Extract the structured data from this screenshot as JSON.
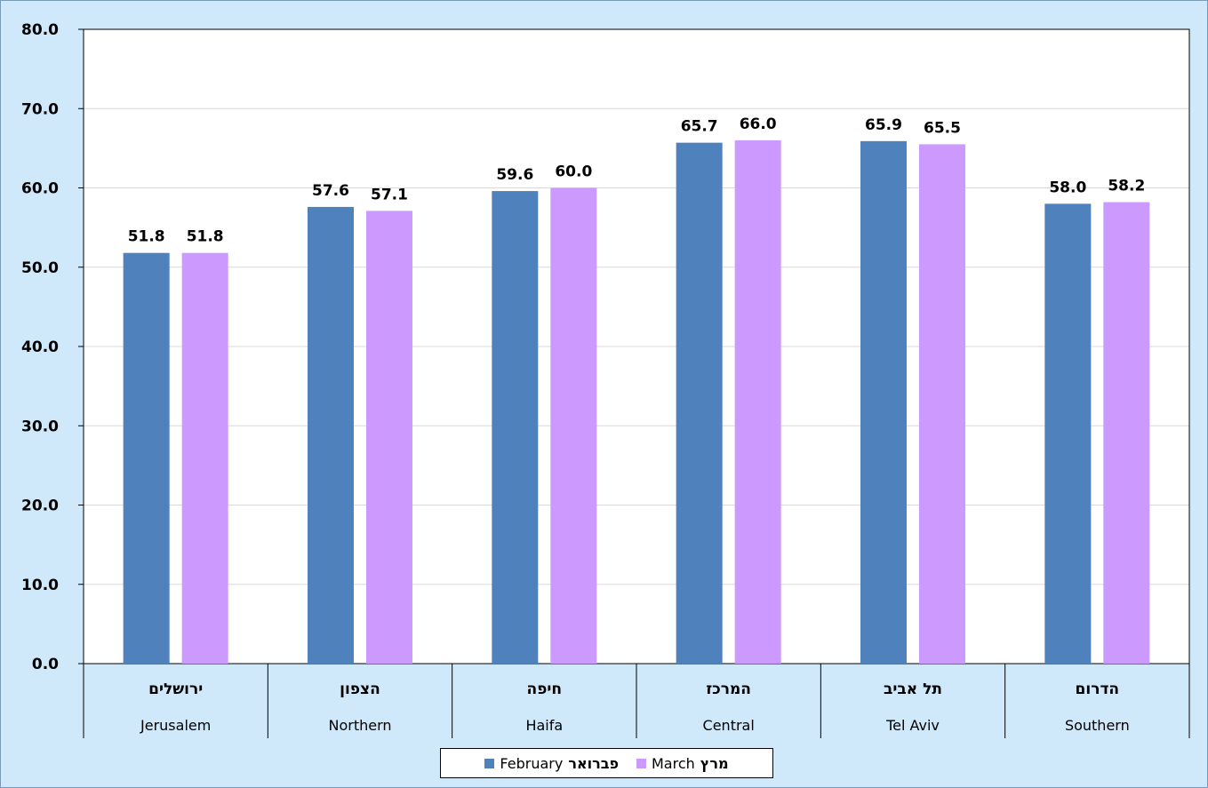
{
  "chart_data": {
    "type": "bar",
    "ylim": [
      0,
      80
    ],
    "yticks": [
      "0.0",
      "10.0",
      "20.0",
      "30.0",
      "40.0",
      "50.0",
      "60.0",
      "70.0",
      "80.0"
    ],
    "grid": true,
    "legend_position": "bottom",
    "categories": [
      {
        "he": "ירושלים",
        "en": "Jerusalem"
      },
      {
        "he": "הצפון",
        "en": "Northern"
      },
      {
        "he": "חיפה",
        "en": "Haifa"
      },
      {
        "he": "המרכז",
        "en": "Central"
      },
      {
        "he": "תל אביב",
        "en": "Tel Aviv"
      },
      {
        "he": "הדרום",
        "en": "Southern"
      }
    ],
    "series": [
      {
        "name_en": "February",
        "name_he": "פברואר",
        "color": "#4f81bd",
        "values": [
          51.8,
          57.6,
          59.6,
          65.7,
          65.9,
          58.0
        ],
        "labels": [
          "51.8",
          "57.6",
          "59.6",
          "65.7",
          "65.9",
          "58.0"
        ]
      },
      {
        "name_en": "March",
        "name_he": "מרץ",
        "color": "#cc99ff",
        "values": [
          51.8,
          57.1,
          60.0,
          66.0,
          65.5,
          58.2
        ],
        "labels": [
          "51.8",
          "57.1",
          "60.0",
          "66.0",
          "65.5",
          "58.2"
        ]
      }
    ]
  }
}
